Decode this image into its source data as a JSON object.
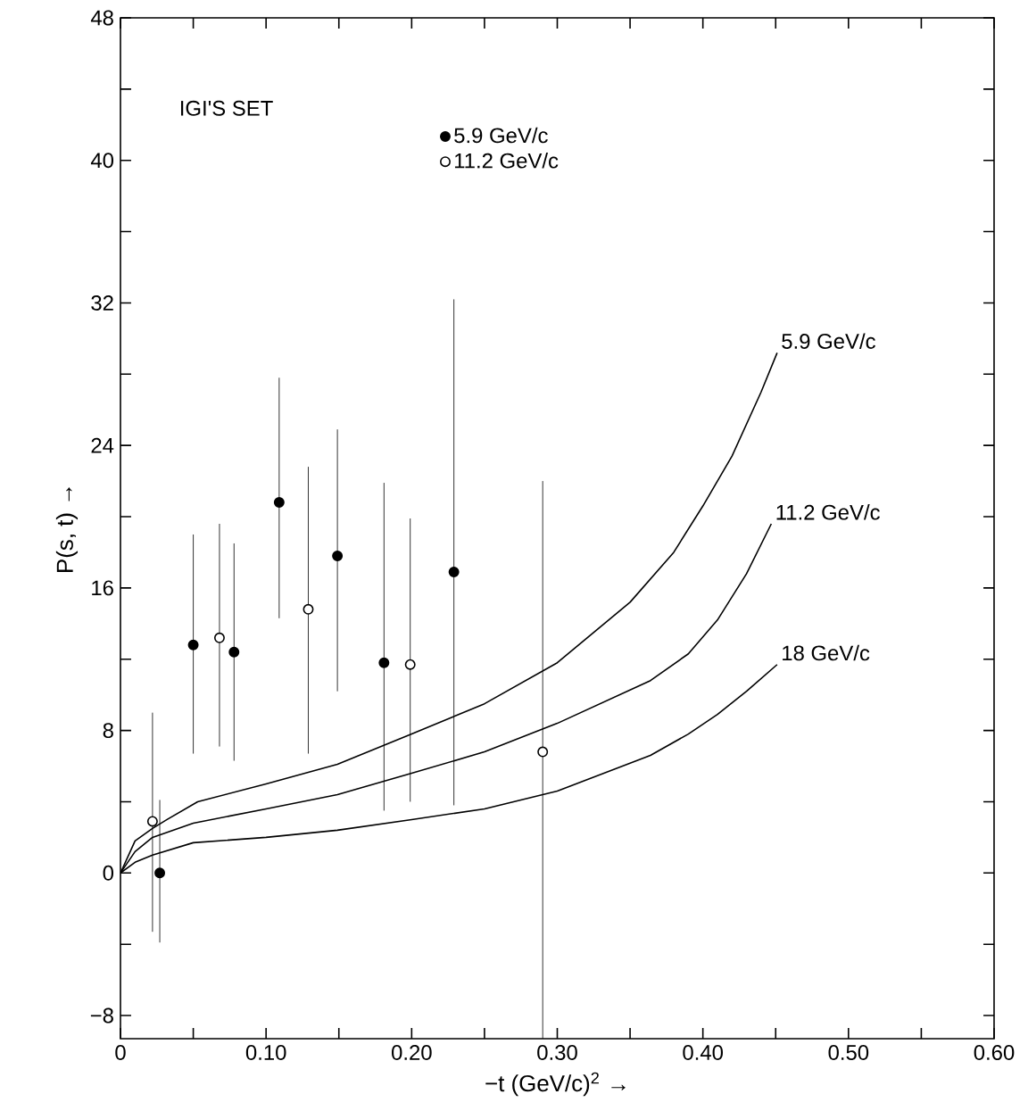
{
  "chart_data": {
    "type": "scatter",
    "xlabel": "−t (GeV/c)$^{2}$ →",
    "ylabel": "P(s, t) →",
    "annotations": [
      "IGI'S SET"
    ],
    "xlim": [
      0,
      0.6
    ],
    "ylim": [
      -9.3,
      48
    ],
    "xticks": [
      {
        "value": 0,
        "label": "0"
      },
      {
        "value": 0.05,
        "label": null
      },
      {
        "value": 0.1,
        "label": "0.10"
      },
      {
        "value": 0.15,
        "label": null
      },
      {
        "value": 0.2,
        "label": "0.20"
      },
      {
        "value": 0.25,
        "label": null
      },
      {
        "value": 0.3,
        "label": "0.30"
      },
      {
        "value": 0.35,
        "label": null
      },
      {
        "value": 0.4,
        "label": "0.40"
      },
      {
        "value": 0.45,
        "label": null
      },
      {
        "value": 0.5,
        "label": "0.50"
      },
      {
        "value": 0.55,
        "label": null
      },
      {
        "value": 0.6,
        "label": "0.60"
      }
    ],
    "yticks": [
      {
        "value": -8,
        "label": "−8"
      },
      {
        "value": -4,
        "label": null
      },
      0,
      {
        "value": 4,
        "label": null
      },
      8,
      {
        "value": 12,
        "label": null
      },
      16,
      {
        "value": 20,
        "label": null
      },
      24,
      {
        "value": 28,
        "label": null
      },
      32,
      {
        "value": 36,
        "label": null
      },
      40,
      {
        "value": 44,
        "label": null
      },
      48
    ],
    "legend": "top left",
    "series": [
      {
        "name": "5.9 GeV/c",
        "marker": "circle",
        "color": "#000000",
        "x": [
          0.027,
          0.05,
          0.078,
          0.109,
          0.149,
          0.181,
          0.229
        ],
        "values": [
          0,
          12.8,
          12.4,
          20.8,
          17.8,
          11.8,
          16.9
        ],
        "errors": [
          [
            -3.9,
            4.1
          ],
          [
            6.7,
            19.0
          ],
          [
            6.3,
            18.5
          ],
          [
            14.3,
            27.8
          ],
          [
            10.2,
            24.9
          ],
          [
            3.5,
            21.9
          ],
          [
            3.8,
            32.2
          ]
        ]
      },
      {
        "name": "11.2 GeV/c",
        "marker": "circle",
        "color": "#ffffff",
        "x": [
          0.022,
          0.068,
          0.129,
          0.199,
          0.29
        ],
        "values": [
          2.9,
          13.2,
          14.8,
          11.7,
          6.8
        ],
        "errors": [
          [
            -3.3,
            9.0
          ],
          [
            7.1,
            19.6
          ],
          [
            6.7,
            22.8
          ],
          [
            4.0,
            19.9
          ],
          [
            -9.3,
            22.0
          ]
        ]
      },
      {
        "name": "5.9 GeV/c",
        "type": "line",
        "marker": "none",
        "color": "#000000",
        "x": [
          0,
          0.01,
          0.022,
          0.032,
          0.053,
          0.1,
          0.149,
          0.2,
          0.25,
          0.3,
          0.35,
          0.38,
          0.4,
          0.42,
          0.44,
          0.451
        ],
        "values": [
          0,
          1.8,
          2.5,
          3.0,
          4.0,
          5.0,
          6.1,
          7.8,
          9.5,
          11.8,
          15.2,
          18.0,
          20.6,
          23.4,
          27.0,
          29.2
        ]
      },
      {
        "name": "11.2 GeV/c",
        "type": "line",
        "marker": "none",
        "color": "#000000",
        "x": [
          0,
          0.01,
          0.022,
          0.05,
          0.1,
          0.149,
          0.2,
          0.25,
          0.3,
          0.364,
          0.39,
          0.41,
          0.43,
          0.447
        ],
        "values": [
          0,
          1.2,
          2.0,
          2.8,
          3.6,
          4.4,
          5.6,
          6.8,
          8.4,
          10.8,
          12.3,
          14.2,
          16.8,
          19.6
        ]
      },
      {
        "name": "18 GeV/c",
        "type": "line",
        "marker": "none",
        "color": "#000000",
        "x": [
          0,
          0.01,
          0.022,
          0.05,
          0.1,
          0.149,
          0.2,
          0.25,
          0.3,
          0.364,
          0.39,
          0.41,
          0.43,
          0.451
        ],
        "values": [
          0,
          0.6,
          1.0,
          1.7,
          2.0,
          2.4,
          3.0,
          3.6,
          4.6,
          6.6,
          7.8,
          8.9,
          10.2,
          11.7
        ]
      }
    ]
  }
}
